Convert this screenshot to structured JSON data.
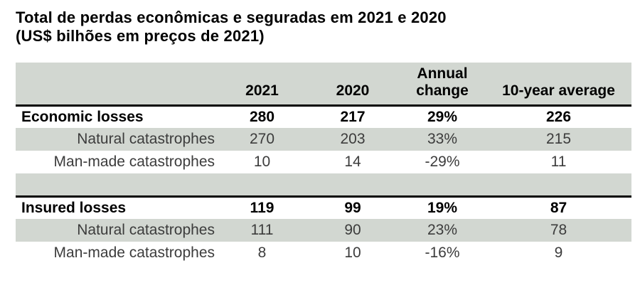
{
  "title": {
    "line1": "Total de perdas econômicas e seguradas em 2021 e 2020",
    "line2": "(US$ bilhões em preços de 2021)"
  },
  "colors": {
    "shade": "#d2d7d1",
    "separator_line": "#000000",
    "text_primary": "#000000",
    "text_secondary": "#3c3c3c"
  },
  "chart_data": {
    "type": "table",
    "title": "Total de perdas econômicas e seguradas em 2021 e 2020 (US$ bilhões em preços de 2021)",
    "columns": [
      "",
      "2021",
      "2020",
      "Annual change",
      "10-year average"
    ],
    "rows": [
      {
        "label": "Economic losses",
        "emphasis": true,
        "values": [
          280,
          217,
          "29%",
          226
        ]
      },
      {
        "label": "Natural catastrophes",
        "emphasis": false,
        "values": [
          270,
          203,
          "33%",
          215
        ]
      },
      {
        "label": "Man-made catastrophes",
        "emphasis": false,
        "values": [
          10,
          14,
          "-29%",
          11
        ]
      },
      {
        "label": "Insured losses",
        "emphasis": true,
        "values": [
          119,
          99,
          "19%",
          87
        ]
      },
      {
        "label": "Natural catastrophes",
        "emphasis": false,
        "values": [
          111,
          90,
          "23%",
          78
        ]
      },
      {
        "label": "Man-made catastrophes",
        "emphasis": false,
        "values": [
          8,
          10,
          "-16%",
          9
        ]
      }
    ],
    "layout": {
      "shaded_rows": [
        "header",
        "Natural catastrophes rows",
        "spacer row"
      ],
      "separator_lines": [
        "below header",
        "below spacer row before Insured losses"
      ]
    }
  }
}
